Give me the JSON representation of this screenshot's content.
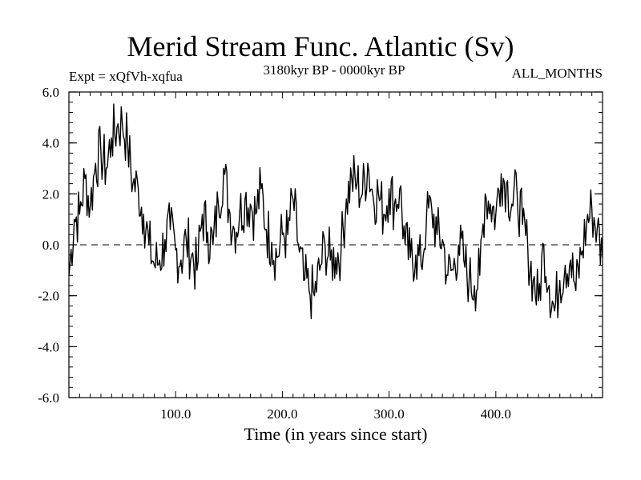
{
  "chart_data": {
    "type": "line",
    "title": "Merid Stream Func. Atlantic (Sv)",
    "subtitle": "3180kyr BP - 0000kyr BP",
    "experiment_label": "Expt = xQfVh-xqfua",
    "season_label": "ALL_MONTHS",
    "xlabel": "Time (in years since start)",
    "ylabel": "",
    "xlim": [
      0,
      500
    ],
    "ylim": [
      -6,
      6
    ],
    "x_ticks": [
      100,
      200,
      300,
      400
    ],
    "x_tick_labels": [
      "100.0",
      "200.0",
      "300.0",
      "400.0"
    ],
    "y_ticks": [
      6,
      4,
      2,
      0,
      -2,
      -4,
      -6
    ],
    "y_tick_labels": [
      "6.0",
      "4.0",
      "2.0",
      "0.0",
      "-2.0",
      "-4.0",
      "-6.0"
    ],
    "reference_line": 0,
    "series": [
      {
        "name": "Merid Stream Func. Atlantic",
        "x": [
          0,
          5,
          10,
          15,
          20,
          25,
          30,
          35,
          40,
          45,
          50,
          55,
          60,
          65,
          70,
          75,
          80,
          85,
          90,
          95,
          100,
          105,
          110,
          115,
          120,
          125,
          130,
          135,
          140,
          145,
          150,
          155,
          160,
          165,
          170,
          175,
          180,
          185,
          190,
          195,
          200,
          205,
          210,
          215,
          220,
          225,
          230,
          235,
          240,
          245,
          250,
          255,
          260,
          265,
          270,
          275,
          280,
          285,
          290,
          295,
          300,
          305,
          310,
          315,
          320,
          325,
          330,
          335,
          340,
          345,
          350,
          355,
          360,
          365,
          370,
          375,
          380,
          385,
          390,
          395,
          400,
          405,
          410,
          415,
          420,
          425,
          430,
          435,
          440,
          445,
          450,
          455,
          460,
          465,
          470,
          475,
          480,
          485,
          490,
          495,
          500
        ],
        "values": [
          -1.2,
          1.0,
          1.2,
          2.6,
          1.5,
          3.2,
          3.6,
          3.0,
          4.2,
          4.6,
          4.8,
          4.0,
          2.4,
          2.2,
          1.2,
          0.0,
          -0.8,
          -0.6,
          0.2,
          0.6,
          -0.2,
          -0.6,
          0.2,
          -0.4,
          -1.0,
          1.2,
          0.5,
          0.0,
          1.6,
          3.0,
          1.4,
          0.6,
          1.2,
          1.8,
          1.6,
          1.2,
          2.2,
          0.6,
          0.1,
          -0.5,
          0.4,
          0.4,
          1.8,
          0.0,
          -1.4,
          -1.8,
          -2.0,
          -1.0,
          0.0,
          -0.6,
          -0.5,
          -0.2,
          1.8,
          2.6,
          2.4,
          2.0,
          3.2,
          1.9,
          2.0,
          1.2,
          2.2,
          1.6,
          2.2,
          0.0,
          -0.5,
          -0.4,
          -0.8,
          1.0,
          1.4,
          0.4,
          0.2,
          -1.2,
          -1.0,
          0.0,
          -0.6,
          -1.4,
          -1.6,
          -1.2,
          2.0,
          1.6,
          1.2,
          2.8,
          2.4,
          1.6,
          2.0,
          0.8,
          -0.2,
          -1.4,
          -2.2,
          0.0,
          -1.6,
          -2.6,
          -1.4,
          -0.8,
          -0.6,
          -1.8,
          -0.4,
          0.8,
          1.4,
          0.6,
          -0.5
        ]
      }
    ]
  }
}
